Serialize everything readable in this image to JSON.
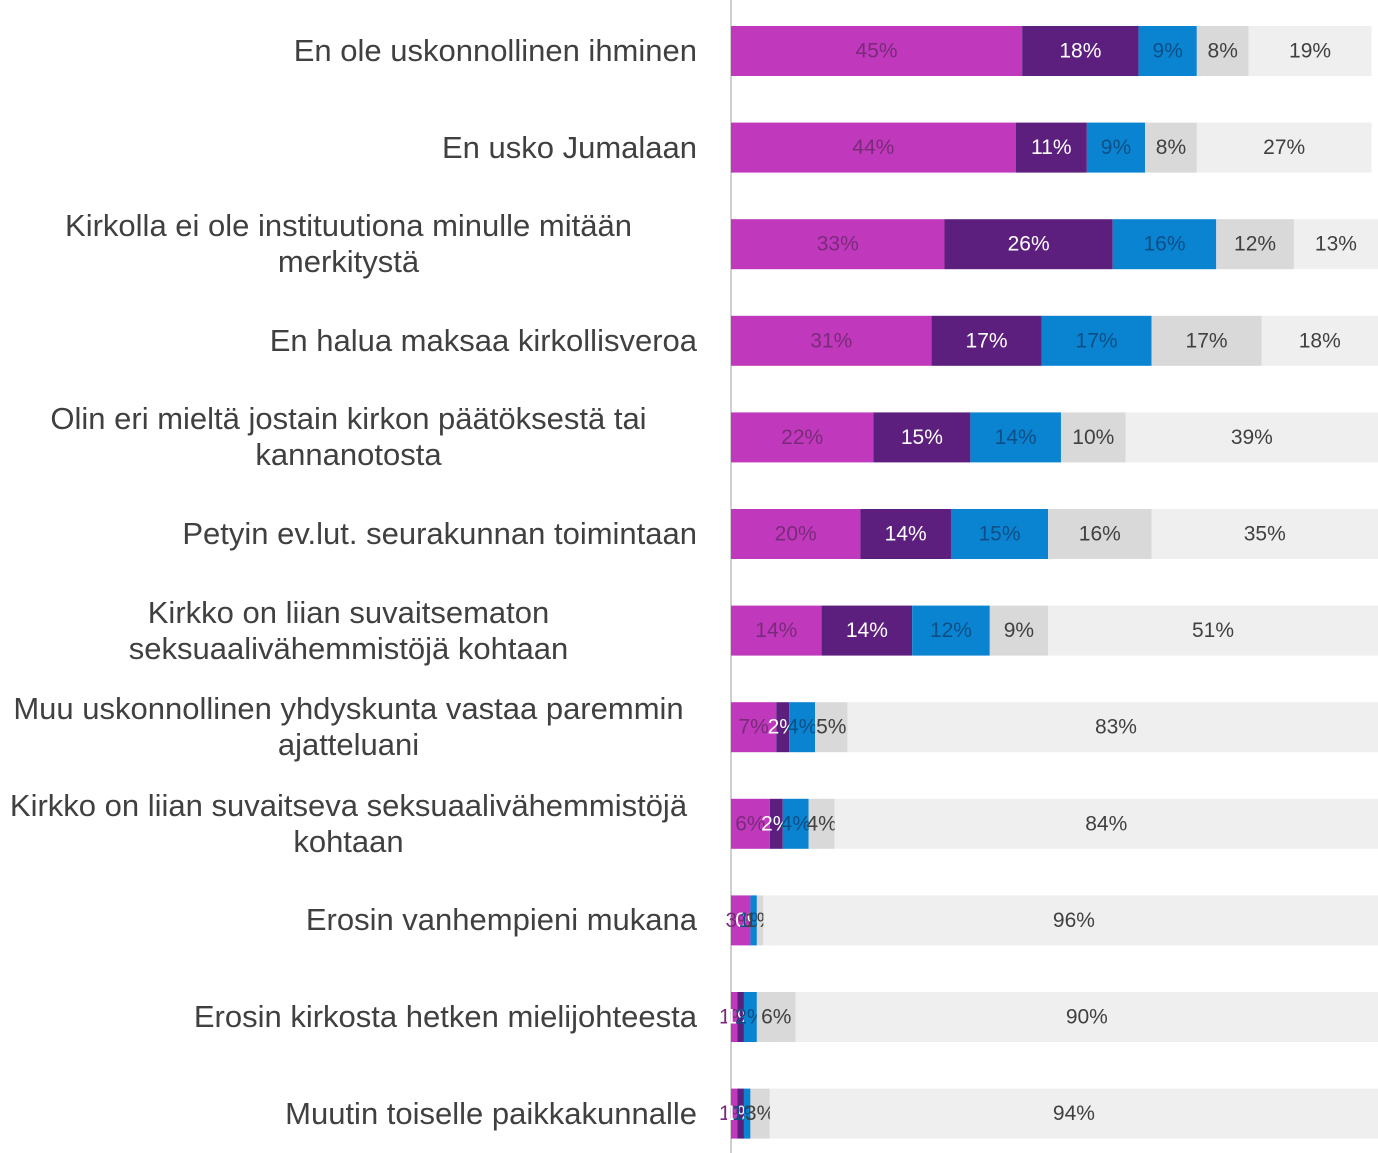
{
  "chart_data": {
    "type": "stacked-bar-horizontal",
    "categories": [
      "En ole uskonnollinen ihminen",
      "En usko Jumalaan",
      "Kirkolla ei ole instituutiona minulle mitään merkitystä",
      "En halua maksaa kirkollisveroa",
      "Olin eri mieltä jostain kirkon päätöksestä tai kannanotosta",
      "Petyin ev.lut. seurakunnan toimintaan",
      "Kirkko on liian suvaitsematon seksuaalivähemmistöjä kohtaan",
      "Muu uskonnollinen yhdyskunta vastaa paremmin ajatteluani",
      "Kirkko on liian suvaitseva seksuaalivähemmistöjä kohtaan",
      "Erosin vanhempieni mukana",
      "Erosin kirkosta hetken mielijohteesta",
      "Muutin toiselle paikkakunnalle"
    ],
    "series": [
      {
        "color": "#c039bd",
        "values": [
          45,
          44,
          33,
          31,
          22,
          20,
          14,
          7,
          6,
          3,
          1,
          1
        ],
        "value_labels": [
          "45%",
          "44%",
          "33%",
          "31%",
          "22%",
          "20%",
          "14%",
          "7%",
          "6%",
          "3%",
          "1%",
          "1%"
        ]
      },
      {
        "color": "#5c1f7e",
        "values": [
          18,
          11,
          26,
          17,
          15,
          14,
          14,
          2,
          2,
          0,
          1,
          1
        ],
        "value_labels": [
          "18%",
          "11%",
          "26%",
          "17%",
          "15%",
          "14%",
          "14%",
          "2%",
          "2%",
          "0%",
          "1%",
          "1%"
        ]
      },
      {
        "color": "#0a84d1",
        "values": [
          9,
          9,
          16,
          17,
          14,
          15,
          12,
          4,
          4,
          1,
          2,
          1
        ],
        "value_labels": [
          "9%",
          "9%",
          "16%",
          "17%",
          "14%",
          "15%",
          "12%",
          "4%",
          "4%",
          "1%",
          "2%",
          "1%"
        ]
      },
      {
        "color": "#d9d9d9",
        "values": [
          8,
          8,
          12,
          17,
          10,
          16,
          9,
          5,
          4,
          1,
          6,
          3
        ],
        "value_labels": [
          "8%",
          "8%",
          "12%",
          "17%",
          "10%",
          "16%",
          "9%",
          "5%",
          "4%",
          "1%",
          "6%",
          "3%"
        ]
      },
      {
        "color": "#efefef",
        "values": [
          19,
          27,
          13,
          18,
          39,
          35,
          51,
          83,
          84,
          96,
          90,
          94
        ],
        "value_labels": [
          "19%",
          "27%",
          "13%",
          "18%",
          "39%",
          "35%",
          "51%",
          "83%",
          "84%",
          "96%",
          "90%",
          "94%"
        ]
      }
    ],
    "xlim": [
      0,
      100
    ]
  }
}
